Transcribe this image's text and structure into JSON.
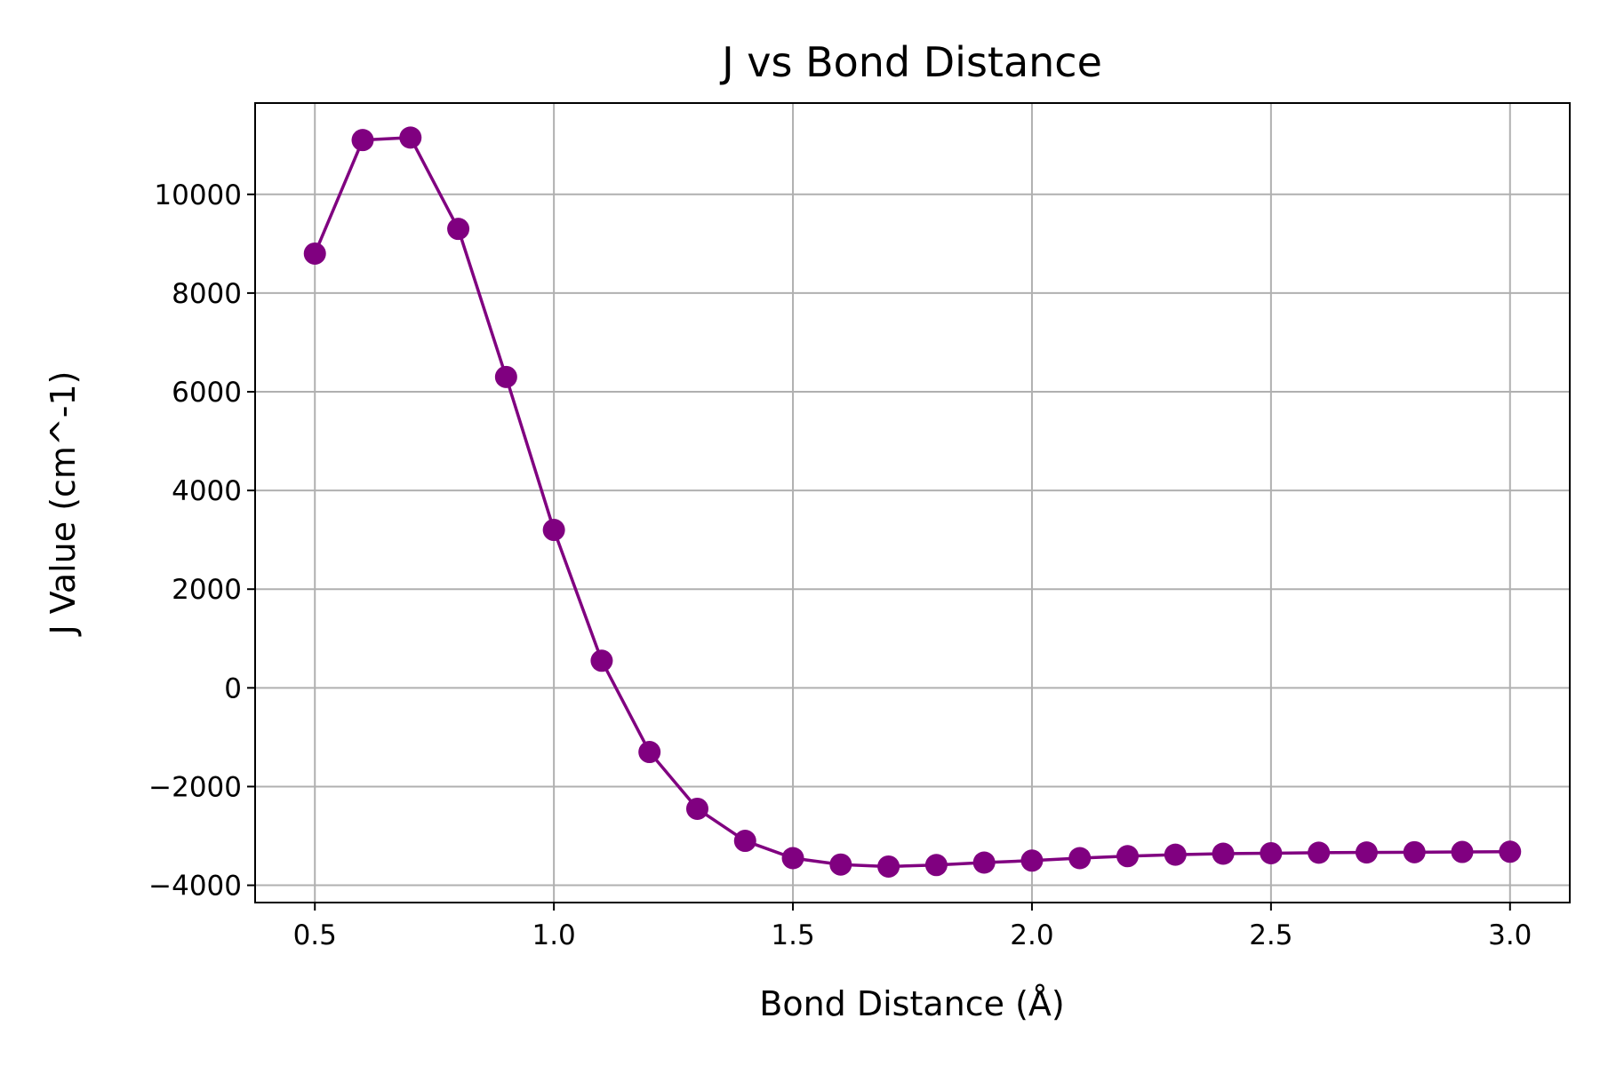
{
  "chart_data": {
    "type": "line",
    "title": "J vs Bond Distance",
    "xlabel": "Bond Distance (Å)",
    "ylabel": "J Value (cm^-1)",
    "xlim": [
      0.375,
      3.125
    ],
    "ylim": [
      -4350,
      11850
    ],
    "xticks": [
      0.5,
      1.0,
      1.5,
      2.0,
      2.5,
      3.0
    ],
    "xtick_labels": [
      "0.5",
      "1.0",
      "1.5",
      "2.0",
      "2.5",
      "3.0"
    ],
    "yticks": [
      -4000,
      -2000,
      0,
      2000,
      4000,
      6000,
      8000,
      10000
    ],
    "ytick_labels": [
      "−4000",
      "−2000",
      "0",
      "2000",
      "4000",
      "6000",
      "8000",
      "10000"
    ],
    "grid": true,
    "color": "#800080",
    "series": [
      {
        "x": [
          0.5,
          0.6,
          0.7,
          0.8,
          0.9,
          1.0,
          1.1,
          1.2,
          1.3,
          1.4,
          1.5,
          1.6,
          1.7,
          1.8,
          1.9,
          2.0,
          2.1,
          2.2,
          2.3,
          2.4,
          2.5,
          2.6,
          2.7,
          2.8,
          2.9,
          3.0
        ],
        "y": [
          8800,
          11100,
          11150,
          9300,
          6300,
          3200,
          550,
          -1300,
          -2450,
          -3100,
          -3450,
          -3580,
          -3620,
          -3590,
          -3540,
          -3500,
          -3450,
          -3410,
          -3380,
          -3360,
          -3350,
          -3340,
          -3335,
          -3330,
          -3325,
          -3320
        ]
      }
    ]
  }
}
